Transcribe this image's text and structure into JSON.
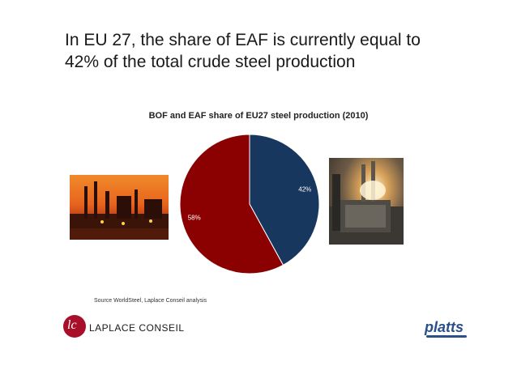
{
  "slide": {
    "title_line1": "In EU 27, the share of EAF is currently equal to",
    "title_line2": "42% of the total crude steel production"
  },
  "chart_data": {
    "type": "pie",
    "title": "BOF and EAF share of EU27 steel production (2010)",
    "slices": [
      {
        "label": "42%",
        "value": 42,
        "color": "#17375e"
      },
      {
        "label": "58%",
        "value": 58,
        "color": "#8b0000"
      }
    ],
    "start_angle_deg": 0,
    "direction": "clockwise"
  },
  "source": "Source WorldSteel, Laplace Conseil analysis",
  "logos": {
    "laplace_mark": "lc",
    "laplace_name": "LAPLACE CONSEIL",
    "platts": "platts"
  },
  "photos": [
    {
      "name": "industrial-plant-sunset-photo"
    },
    {
      "name": "electric-arc-furnace-photo"
    }
  ]
}
